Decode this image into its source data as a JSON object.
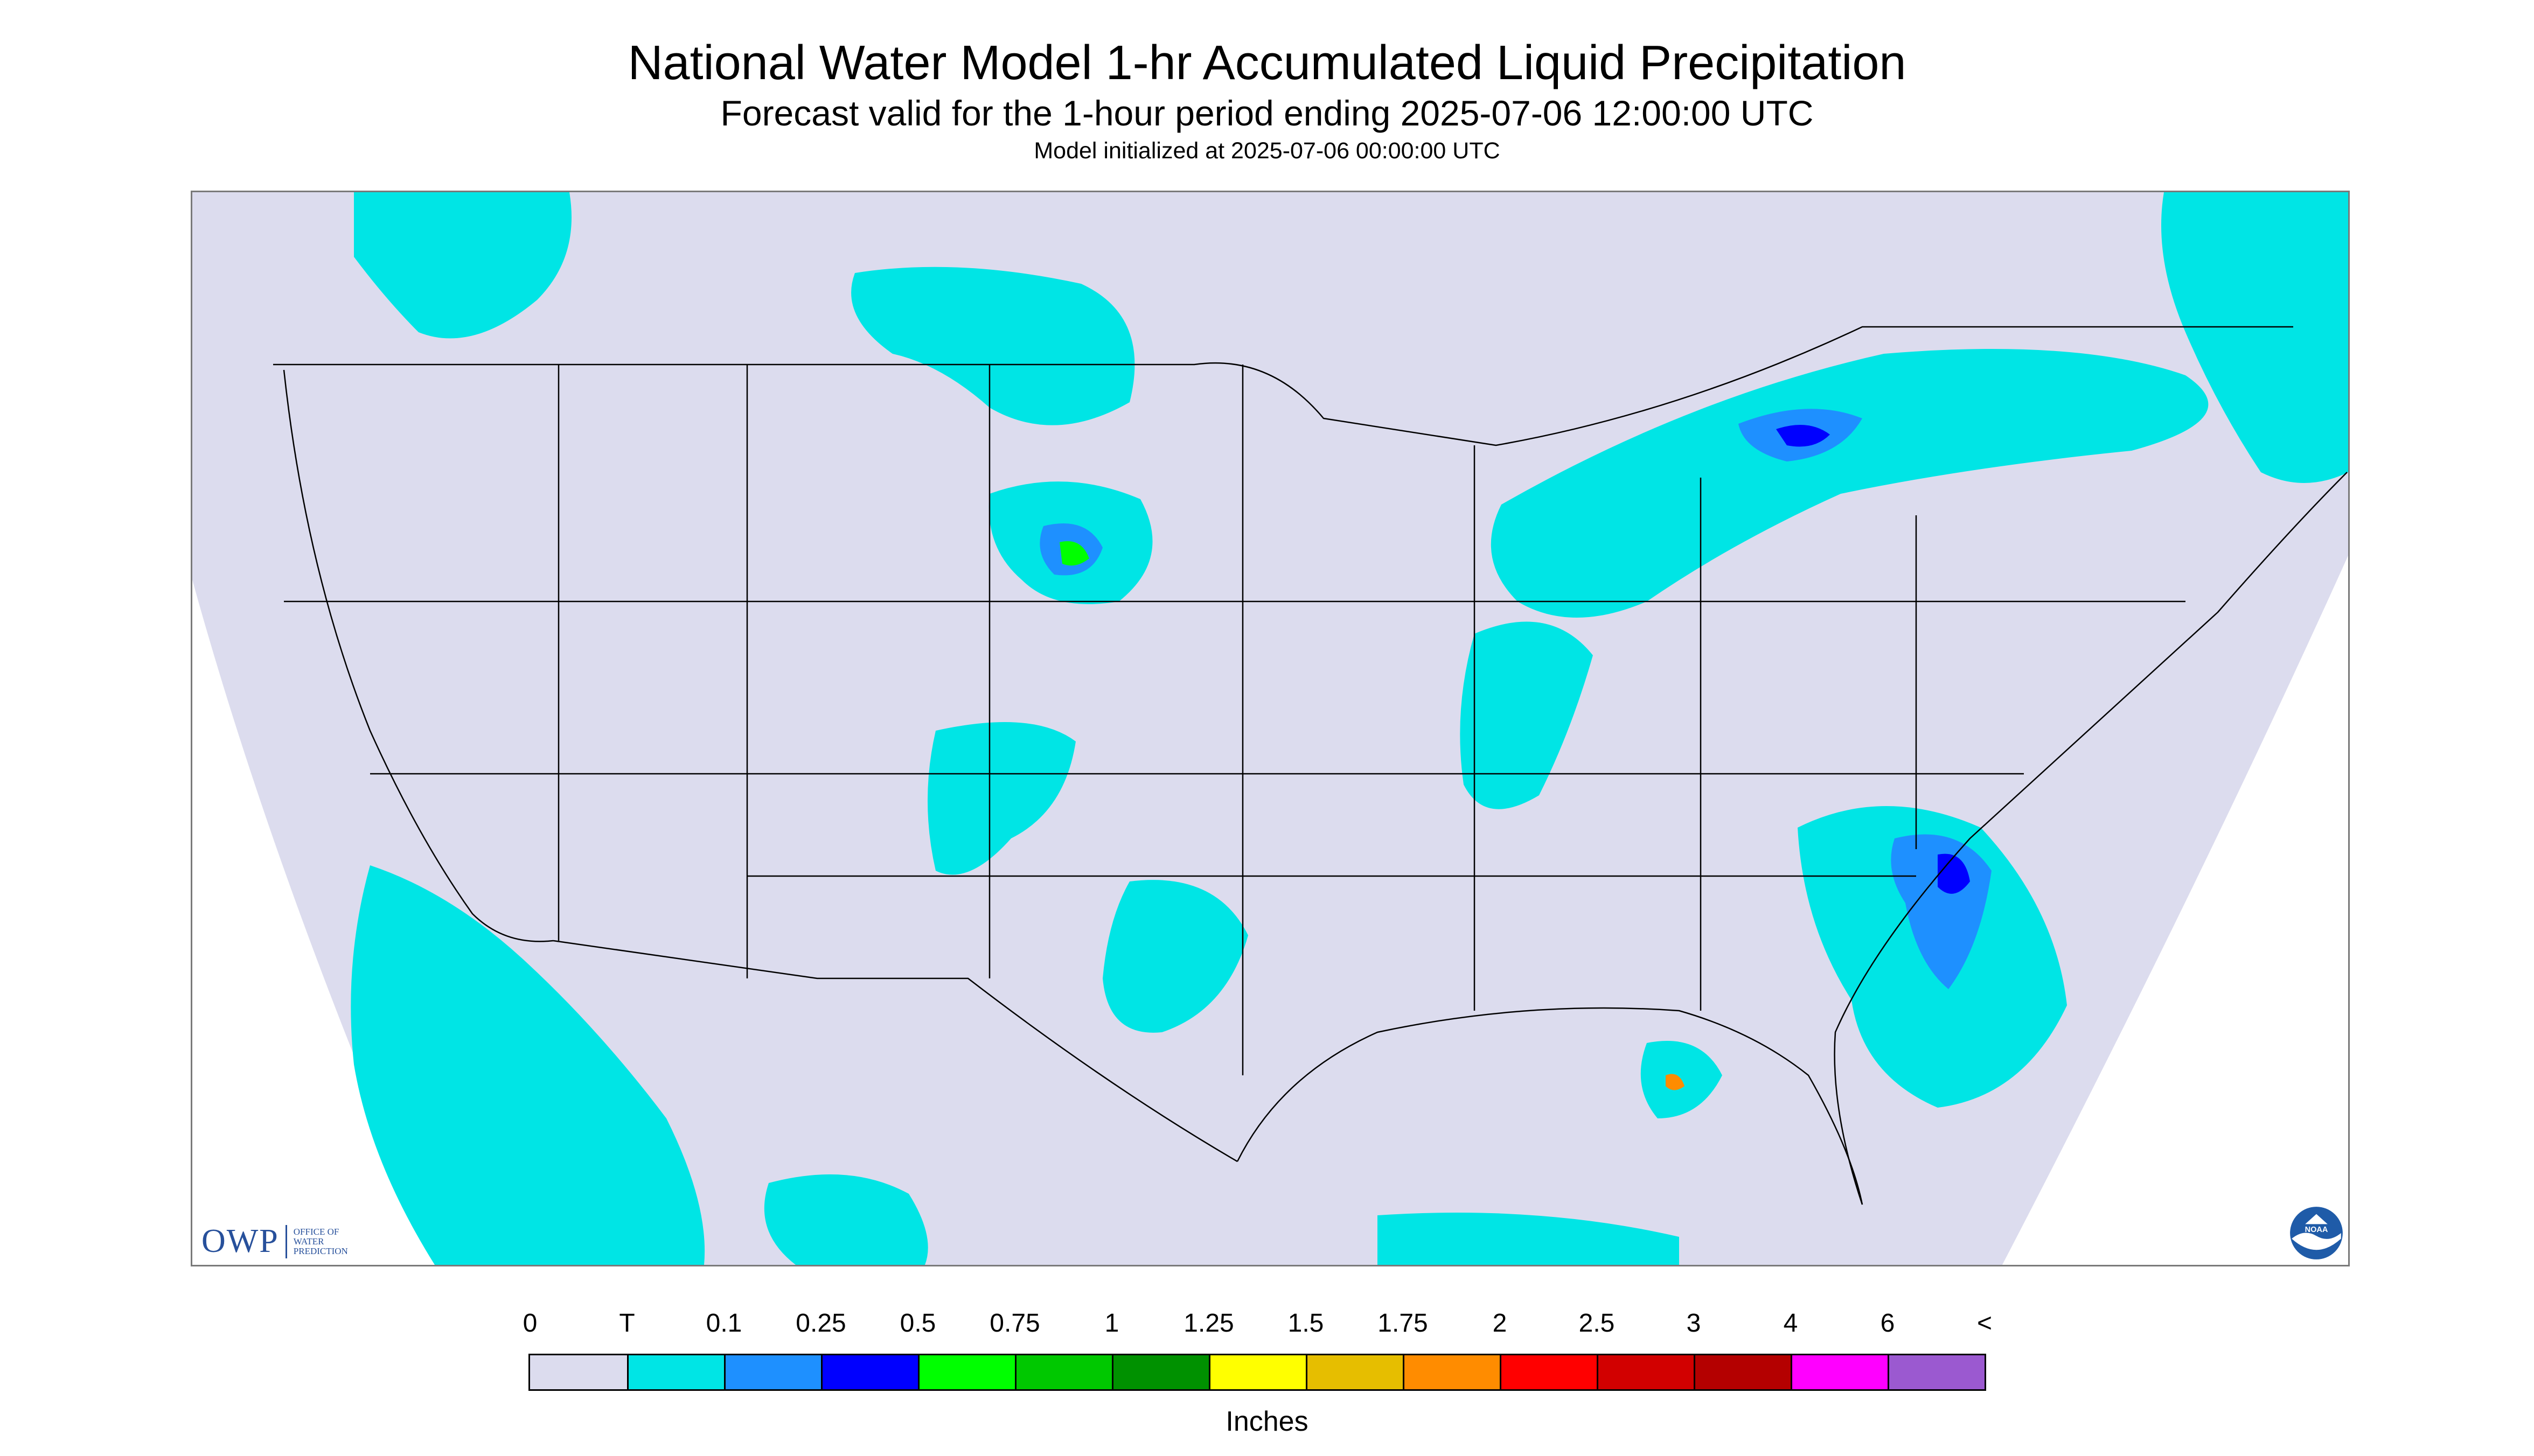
{
  "title": "National Water Model 1-hr Accumulated Liquid Precipitation",
  "subtitle": "Forecast valid for the 1-hour period ending 2025-07-06 12:00:00 UTC",
  "init_text": "Model initialized at 2025-07-06 00:00:00 UTC",
  "legend": {
    "tick_labels": [
      "0",
      "T",
      "0.1",
      "0.25",
      "0.5",
      "0.75",
      "1",
      "1.25",
      "1.5",
      "1.75",
      "2",
      "2.5",
      "3",
      "4",
      "6",
      "<"
    ],
    "colors": [
      "#dcdcee",
      "#00e5e5",
      "#1e90ff",
      "#0000ff",
      "#00ff00",
      "#00c800",
      "#009100",
      "#ffff00",
      "#e6be00",
      "#ff8c00",
      "#ff0000",
      "#d20000",
      "#b40000",
      "#ff00ff",
      "#9b59d0"
    ],
    "units": "Inches"
  },
  "logos": {
    "owp_letters": "OWP",
    "owp_subtitle": "Office of\nWater\nPrediction",
    "noaa_text": "NOAA"
  },
  "map": {
    "domain_color": "#dcdcee",
    "outside_color": "#ffffff",
    "boundary_color": "#000000",
    "precip_colors": {
      "trace": "#00e5e5",
      "light": "#1e90ff",
      "moderate": "#0000ff",
      "heavy": "#00ff00",
      "extreme": "#ff8c00"
    }
  }
}
